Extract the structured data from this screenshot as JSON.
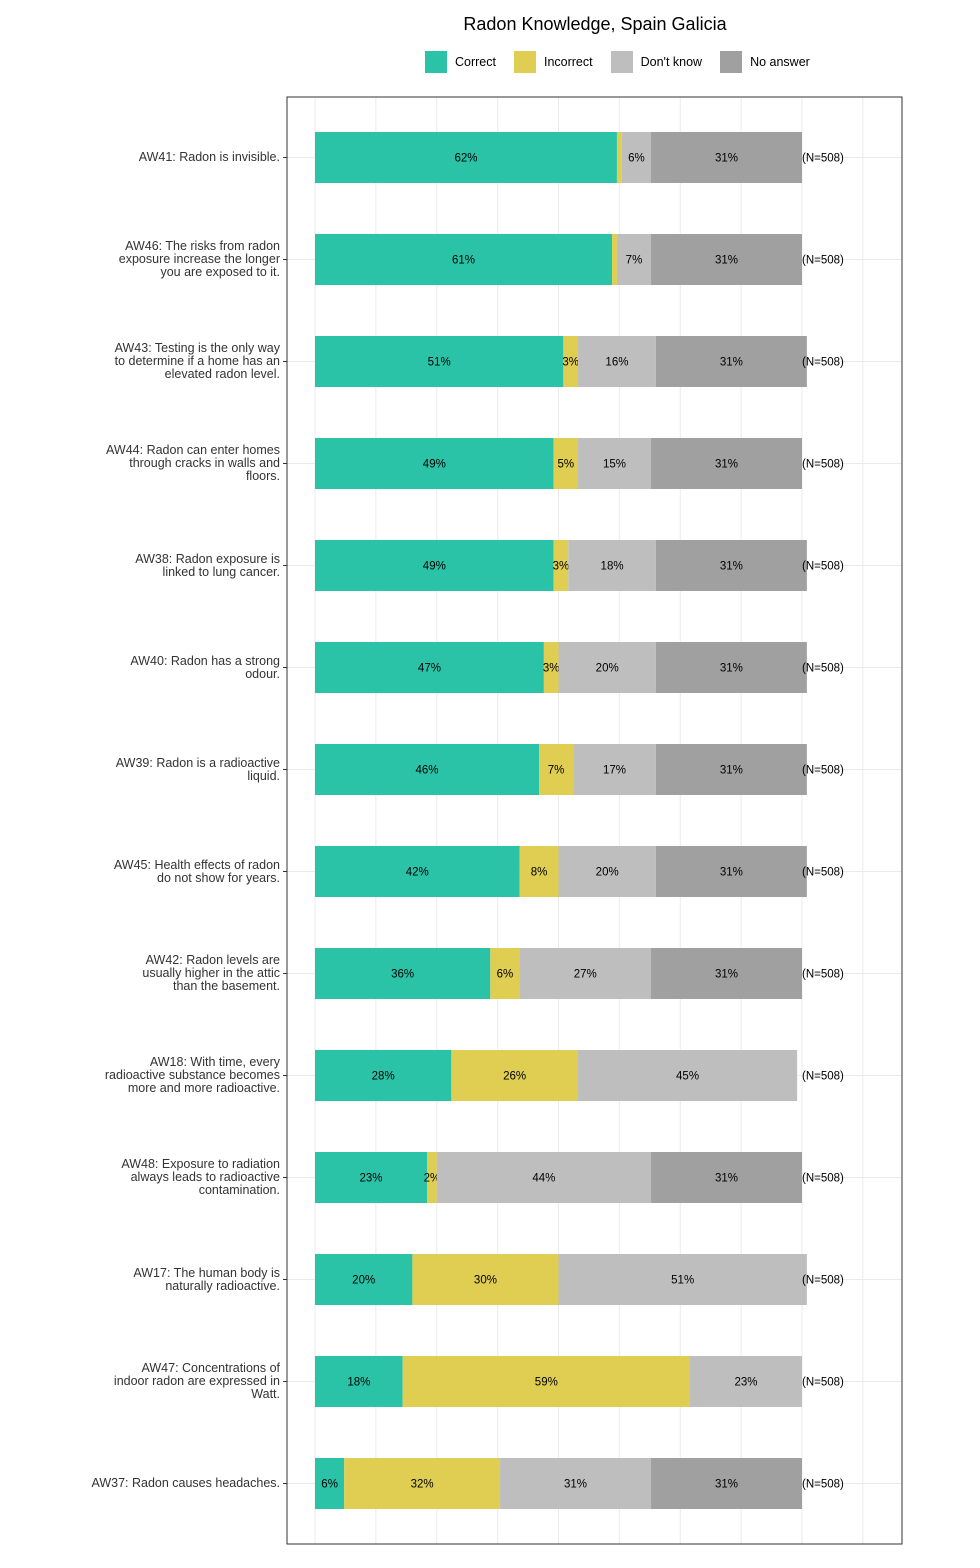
{
  "chart_data": {
    "type": "bar",
    "orientation": "horizontal",
    "stacked": true,
    "title": "Radon Knowledge, Spain Galicia",
    "legend_position": "top",
    "categories": [
      "AW41: Radon is invisible.",
      "AW46: The risks from radon\nexposure increase the longer\nyou are exposed to it.",
      "AW43: Testing is the only way\nto determine if a home has an\nelevated radon level.",
      "AW44: Radon can enter homes\nthrough cracks in walls and\nfloors.",
      "AW38: Radon exposure is\nlinked to lung cancer.",
      "AW40: Radon has a strong\nodour.",
      "AW39: Radon is a radioactive\nliquid.",
      "AW45: Health effects of radon\ndo not show for years.",
      "AW42: Radon levels are\nusually higher in the attic\nthan the basement.",
      "AW18: With time, every\nradioactive substance becomes\nmore and more radioactive.",
      "AW48: Exposure to radiation\nalways leads to radioactive\ncontamination.",
      "AW17: The human body is\nnaturally radioactive.",
      "AW47: Concentrations of\nindoor radon are expressed in\nWatt.",
      "AW37: Radon causes headaches."
    ],
    "series": [
      {
        "name": "Correct",
        "color": "#2AC3A8",
        "values": [
          62,
          61,
          51,
          49,
          49,
          47,
          46,
          42,
          36,
          28,
          23,
          20,
          18,
          6
        ]
      },
      {
        "name": "Incorrect",
        "color": "#E0CE52",
        "values": [
          1,
          1,
          3,
          5,
          3,
          3,
          7,
          8,
          6,
          26,
          2,
          30,
          59,
          32
        ]
      },
      {
        "name": "Don't know",
        "color": "#BEBEBE",
        "values": [
          6,
          7,
          16,
          15,
          18,
          20,
          17,
          20,
          27,
          45,
          44,
          51,
          23,
          31
        ]
      },
      {
        "name": "No answer",
        "color": "#A0A0A0",
        "values": [
          31,
          31,
          31,
          31,
          31,
          31,
          31,
          31,
          31,
          0,
          31,
          0,
          0,
          31
        ]
      }
    ],
    "value_labels": [
      [
        "62%",
        "",
        "6%",
        "31%"
      ],
      [
        "61%",
        "",
        "7%",
        "31%"
      ],
      [
        "51%",
        "3%",
        "16%",
        "31%"
      ],
      [
        "49%",
        "5%",
        "15%",
        "31%"
      ],
      [
        "49%",
        "3%",
        "18%",
        "31%"
      ],
      [
        "47%",
        "3%",
        "20%",
        "31%"
      ],
      [
        "46%",
        "7%",
        "17%",
        "31%"
      ],
      [
        "42%",
        "8%",
        "20%",
        "31%"
      ],
      [
        "36%",
        "6%",
        "27%",
        "31%"
      ],
      [
        "28%",
        "26%",
        "45%",
        ""
      ],
      [
        "23%",
        "2%",
        "44%",
        "31%"
      ],
      [
        "20%",
        "30%",
        "51%",
        ""
      ],
      [
        "18%",
        "59%",
        "23%",
        ""
      ],
      [
        "6%",
        "32%",
        "31%",
        "31%"
      ]
    ],
    "n_labels": [
      "(N=508)",
      "(N=508)",
      "(N=508)",
      "(N=508)",
      "(N=508)",
      "(N=508)",
      "(N=508)",
      "(N=508)",
      "(N=508)",
      "(N=508)",
      "(N=508)",
      "(N=508)",
      "(N=508)",
      "(N=508)"
    ],
    "xlim": [
      0,
      100
    ],
    "grid": true
  }
}
